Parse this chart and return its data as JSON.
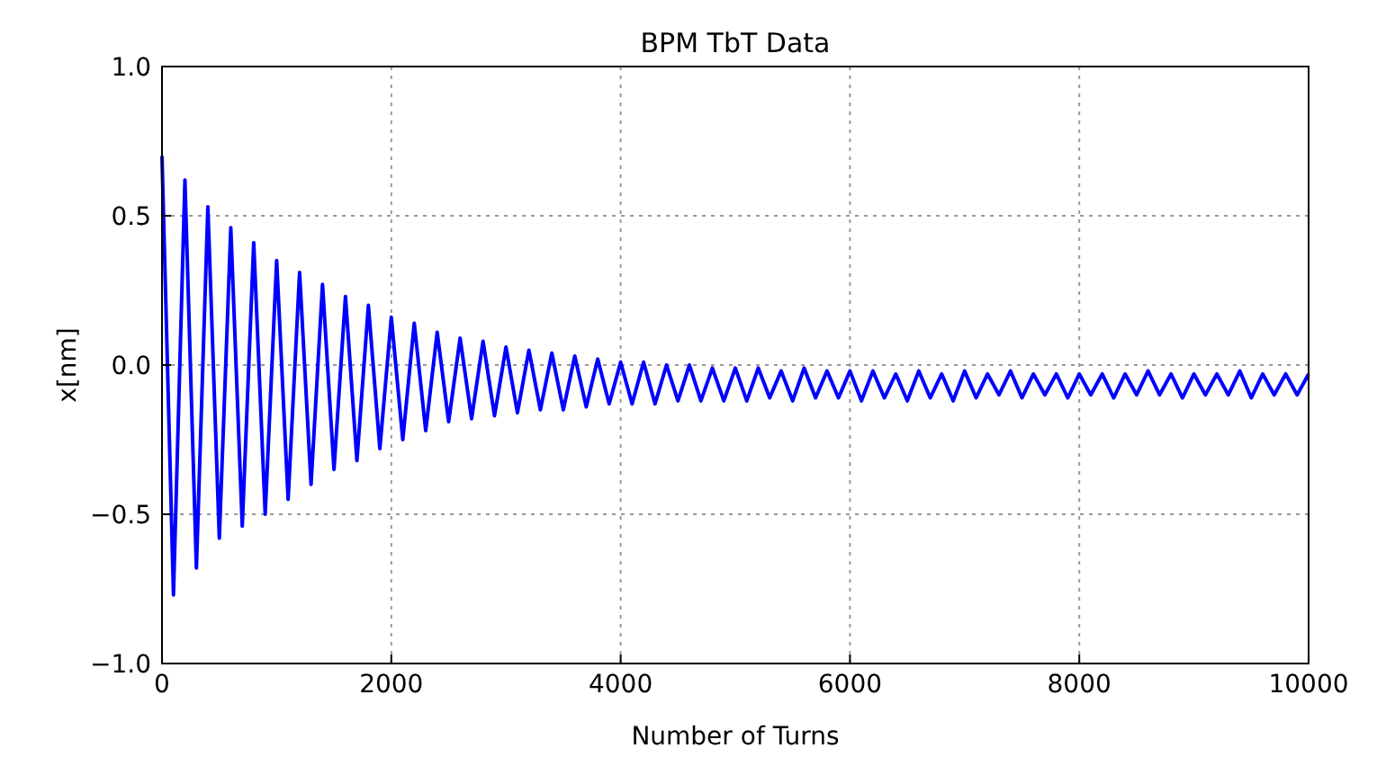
{
  "chart_data": {
    "type": "line",
    "title": "BPM TbT Data",
    "xlabel": "Number of Turns",
    "ylabel": "x[nm]",
    "x": [
      0,
      100,
      200,
      300,
      400,
      500,
      600,
      700,
      800,
      900,
      1000,
      1100,
      1200,
      1300,
      1400,
      1500,
      1600,
      1700,
      1800,
      1900,
      2000,
      2100,
      2200,
      2300,
      2400,
      2500,
      2600,
      2700,
      2800,
      2900,
      3000,
      3100,
      3200,
      3300,
      3400,
      3500,
      3600,
      3700,
      3800,
      3900,
      4000,
      4100,
      4200,
      4300,
      4400,
      4500,
      4600,
      4700,
      4800,
      4900,
      5000,
      5100,
      5200,
      5300,
      5400,
      5500,
      5600,
      5700,
      5800,
      5900,
      6000,
      6100,
      6200,
      6300,
      6400,
      6500,
      6600,
      6700,
      6800,
      6900,
      7000,
      7100,
      7200,
      7300,
      7400,
      7500,
      7600,
      7700,
      7800,
      7900,
      8000,
      8100,
      8200,
      8300,
      8400,
      8500,
      8600,
      8700,
      8800,
      8900,
      9000,
      9100,
      9200,
      9300,
      9400,
      9500,
      9600,
      9700,
      9800,
      9900,
      10000
    ],
    "series": [
      {
        "color": "#0000ff",
        "values": [
          0.7,
          -0.77,
          0.62,
          -0.68,
          0.53,
          -0.58,
          0.46,
          -0.54,
          0.41,
          -0.5,
          0.35,
          -0.45,
          0.31,
          -0.4,
          0.27,
          -0.35,
          0.23,
          -0.32,
          0.2,
          -0.28,
          0.16,
          -0.25,
          0.14,
          -0.22,
          0.11,
          -0.19,
          0.09,
          -0.18,
          0.08,
          -0.17,
          0.06,
          -0.16,
          0.05,
          -0.15,
          0.04,
          -0.15,
          0.03,
          -0.14,
          0.02,
          -0.13,
          0.01,
          -0.13,
          0.01,
          -0.13,
          0.0,
          -0.12,
          0.0,
          -0.12,
          -0.01,
          -0.12,
          -0.01,
          -0.12,
          -0.01,
          -0.11,
          -0.02,
          -0.12,
          -0.01,
          -0.11,
          -0.02,
          -0.11,
          -0.02,
          -0.12,
          -0.02,
          -0.11,
          -0.03,
          -0.12,
          -0.02,
          -0.11,
          -0.03,
          -0.12,
          -0.02,
          -0.11,
          -0.03,
          -0.1,
          -0.02,
          -0.11,
          -0.03,
          -0.1,
          -0.03,
          -0.11,
          -0.03,
          -0.1,
          -0.03,
          -0.11,
          -0.03,
          -0.1,
          -0.02,
          -0.1,
          -0.03,
          -0.11,
          -0.03,
          -0.1,
          -0.03,
          -0.1,
          -0.02,
          -0.11,
          -0.03,
          -0.1,
          -0.03,
          -0.1,
          -0.03
        ]
      }
    ],
    "xlim": [
      0,
      10000
    ],
    "xticks": [
      0,
      2000,
      4000,
      6000,
      8000,
      10000
    ],
    "ylim": [
      -1.0,
      1.0
    ],
    "yticks": [
      {
        "value": -1.0,
        "label": "−1.0"
      },
      {
        "value": -0.5,
        "label": "−0.5"
      },
      {
        "value": 0.0,
        "label": "0.0"
      },
      {
        "value": 0.5,
        "label": "0.5"
      },
      {
        "value": 1.0,
        "label": "1.0"
      }
    ],
    "grid": true,
    "line_style": "solid"
  }
}
